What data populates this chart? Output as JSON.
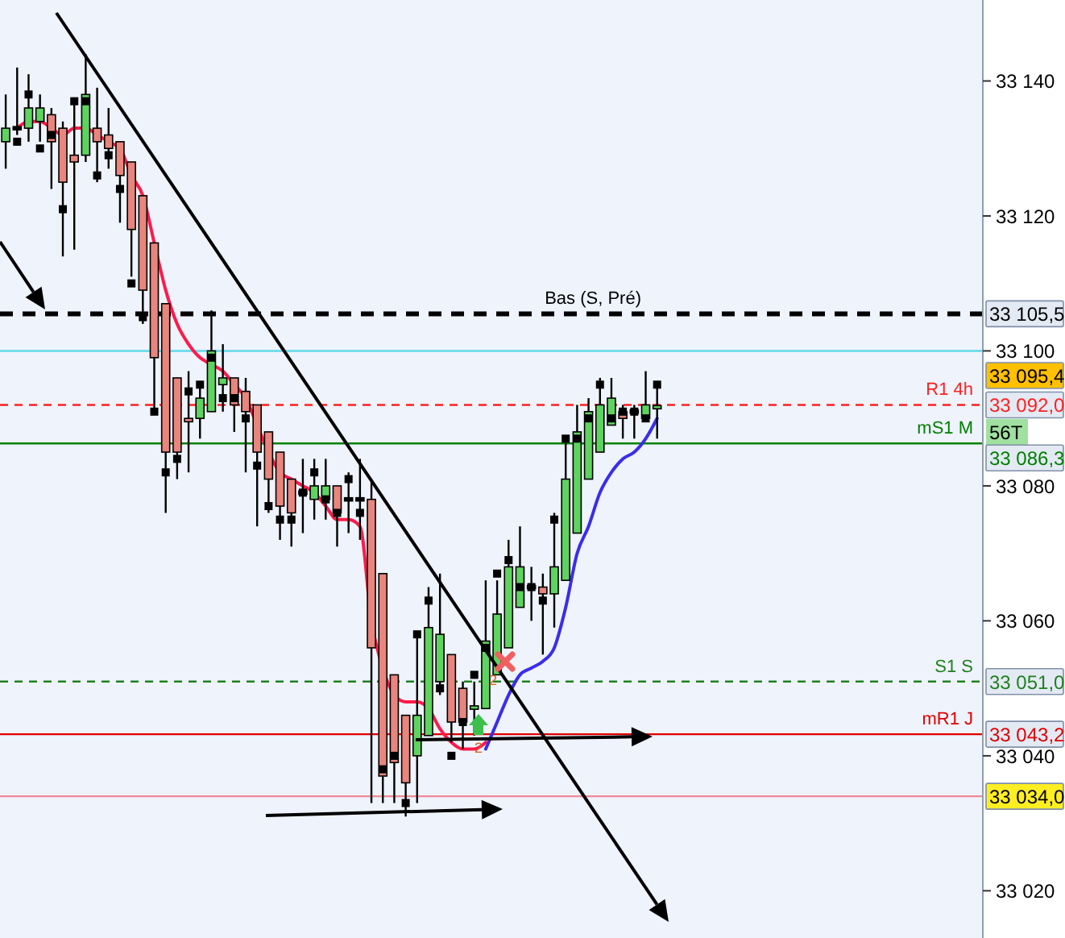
{
  "chart_data": {
    "type": "candlestick",
    "categories": [
      null,
      null,
      null,
      null,
      null,
      null,
      null,
      null,
      null,
      null,
      null,
      null,
      null,
      null,
      null,
      null,
      null,
      null,
      null,
      null,
      null,
      null,
      null,
      null,
      null,
      null,
      null,
      null,
      null,
      null,
      null,
      null,
      null,
      null,
      null,
      null,
      null,
      null,
      null,
      null,
      null,
      null,
      null,
      null,
      null,
      null,
      null,
      null,
      null,
      null,
      null,
      null,
      null,
      null,
      null,
      null,
      null,
      null,
      null,
      null,
      null,
      null,
      null,
      null,
      null,
      null,
      null,
      null,
      null,
      null,
      null,
      null,
      null,
      null,
      null,
      null,
      null,
      null,
      null,
      null,
      null,
      null,
      null,
      null,
      null,
      null
    ],
    "ohlc": [
      [
        33131,
        33138,
        33127,
        33133
      ],
      [
        33133,
        33142,
        33132,
        33133
      ],
      [
        33133,
        33141,
        33131,
        33136
      ],
      [
        33134,
        33138,
        33131,
        33136
      ],
      [
        33135,
        33136,
        33124,
        33131
      ],
      [
        33133,
        33134,
        33114,
        33125
      ],
      [
        33129,
        33137,
        33115,
        33128
      ],
      [
        33129,
        33144,
        33128,
        33138
      ],
      [
        33133,
        33139,
        33125,
        33131
      ],
      [
        33132,
        33136,
        33127,
        33130
      ],
      [
        33131,
        33131,
        33119,
        33126
      ],
      [
        33128,
        33128,
        33111,
        33118
      ],
      [
        33123,
        33123,
        33104,
        33109
      ],
      [
        33116,
        33116,
        33091,
        33099
      ],
      [
        33107,
        33107,
        33076,
        33085
      ],
      [
        33096,
        33096,
        33081,
        33085
      ],
      [
        33090,
        33097,
        33082,
        33089.5
      ],
      [
        33090,
        33095,
        33087,
        33093
      ],
      [
        33091,
        33106,
        33091,
        33100
      ],
      [
        33095,
        33101,
        33091,
        33096
      ],
      [
        33096,
        33096,
        33088,
        33092
      ],
      [
        33094,
        33096,
        33082,
        33091
      ],
      [
        33092,
        33092,
        33074,
        33085
      ],
      [
        33088,
        33088,
        33076,
        33081
      ],
      [
        33085,
        33085,
        33072,
        33077
      ],
      [
        33081,
        33081,
        33071,
        33076
      ],
      [
        33079,
        33084,
        33073,
        33079
      ],
      [
        33078,
        33084,
        33075,
        33080
      ],
      [
        33078,
        33084,
        33075,
        33080
      ],
      [
        33080,
        33080,
        33071,
        33076
      ],
      [
        33078,
        33082,
        33073,
        33078
      ],
      [
        33078,
        33084,
        33072,
        33078
      ],
      [
        33078,
        33081,
        33033,
        33056
      ],
      [
        33067,
        33067,
        33033,
        33037
      ],
      [
        33052,
        33052,
        33033,
        33039
      ],
      [
        33046,
        33046,
        33031,
        33036
      ],
      [
        33040,
        33058,
        33033,
        33046
      ],
      [
        33043,
        33065,
        33043,
        33059
      ],
      [
        33051,
        33067,
        33049,
        33058
      ],
      [
        33055,
        33055,
        33042,
        33045
      ],
      [
        33050,
        33051,
        33041,
        33045
      ],
      [
        33046.9,
        33051,
        33043,
        33047.4
      ],
      [
        33047,
        33066,
        33047,
        33057
      ],
      [
        33052,
        33066,
        33052,
        33061
      ],
      [
        33056,
        33072,
        33056,
        33068
      ],
      [
        33062,
        33074,
        33062,
        33068
      ],
      [
        33065,
        33068,
        33060,
        33065
      ],
      [
        33065,
        33067,
        33055,
        33064
      ],
      [
        33064,
        33076,
        33059,
        33068
      ],
      [
        33066,
        33087,
        33066,
        33081
      ],
      [
        33073,
        33092,
        33073,
        33088
      ],
      [
        33081,
        33093,
        33081,
        33091
      ],
      [
        33085,
        33096,
        33085,
        33092
      ],
      [
        33089,
        33096,
        33089,
        33093
      ],
      [
        33091,
        33092,
        33087,
        33090
      ],
      [
        33091,
        33092,
        33087,
        33091
      ],
      [
        33090,
        33097,
        33090,
        33092
      ],
      [
        33091.6,
        33095.5,
        33087,
        33091.9
      ],
      null,
      null,
      null,
      null,
      null,
      null,
      null,
      null,
      null,
      null,
      null,
      null,
      null,
      null,
      null,
      null,
      null,
      null,
      null,
      null,
      null,
      null,
      null,
      null,
      null,
      null,
      null,
      null
    ],
    "series": [
      {
        "type": "scatter",
        "marker": "square",
        "color": "#000000",
        "values": [
          null,
          33131,
          33138,
          33130,
          33132,
          33121,
          33137,
          33137,
          33126,
          33129,
          33124,
          33110,
          33105,
          33091,
          33082,
          33084,
          33094,
          33095,
          33099,
          33093,
          33093,
          33090,
          33083,
          33077,
          33075,
          33075,
          33079,
          33082,
          33078,
          33076,
          33081,
          33076,
          null,
          33038,
          33040,
          33033,
          33058,
          33063,
          33050,
          33040,
          33045,
          33052,
          33056,
          33067,
          33069,
          33065,
          33065,
          33063,
          33075,
          33087,
          33087,
          33090,
          33095,
          33090,
          33091,
          33091,
          33090,
          33095,
          null,
          null,
          null,
          null,
          null,
          null,
          null,
          null,
          null,
          null,
          null,
          null,
          null,
          null,
          null,
          null,
          null,
          null,
          null,
          null,
          null,
          null,
          null,
          null,
          null,
          null,
          null,
          null
        ]
      },
      {
        "type": "line",
        "color": "#ff1a4a",
        "values": [
          null,
          33133,
          33134,
          33134,
          33133,
          33132,
          33133,
          33133,
          33132,
          33131,
          33130,
          33126,
          33123,
          33116,
          33109,
          33104,
          33101,
          33099,
          33098,
          33097,
          33095,
          33093,
          33089,
          33085,
          33082,
          33081,
          33080,
          33079,
          33077,
          33075,
          33075,
          33074,
          33060,
          33053,
          33049,
          33048,
          33048,
          33047,
          33044,
          33042,
          33041,
          33041,
          33042,
          null,
          null,
          null,
          null,
          null,
          null,
          null,
          null,
          null,
          null,
          null,
          null,
          null,
          null,
          null,
          null,
          null,
          null,
          null,
          null,
          null,
          null,
          null,
          null,
          null,
          null,
          null,
          null,
          null,
          null,
          null,
          null,
          null,
          null,
          null,
          null,
          null,
          null,
          null,
          null,
          null,
          null,
          null
        ]
      },
      {
        "type": "line",
        "color": "#3a2ee8",
        "values": [
          null,
          null,
          null,
          null,
          null,
          null,
          null,
          null,
          null,
          null,
          null,
          null,
          null,
          null,
          null,
          null,
          null,
          null,
          null,
          null,
          null,
          null,
          null,
          null,
          null,
          null,
          null,
          null,
          null,
          null,
          null,
          null,
          null,
          null,
          null,
          null,
          null,
          null,
          null,
          null,
          null,
          null,
          33041,
          33045,
          33049,
          33052,
          33053,
          33054,
          33056,
          33062,
          33070,
          33074,
          33079,
          33082,
          33084,
          33085,
          33087,
          33090,
          null,
          null,
          null,
          null,
          null,
          null,
          null,
          null,
          null,
          null,
          null,
          null,
          null,
          null,
          null,
          null,
          null,
          null,
          null,
          null,
          null,
          null,
          null,
          null,
          null,
          null,
          null,
          null
        ]
      }
    ],
    "ylim": [
      33013,
      33152
    ],
    "yticks": [
      {
        "value": 33020,
        "label": "33 020"
      },
      {
        "value": 33040,
        "label": "33 040"
      },
      {
        "value": 33060,
        "label": "33 060"
      },
      {
        "value": 33080,
        "label": "33 080"
      },
      {
        "value": 33100,
        "label": "33 100"
      },
      {
        "value": 33120,
        "label": "33 120"
      },
      {
        "value": 33140,
        "label": "33 140"
      }
    ],
    "ref_lines": [
      {
        "axis": "y",
        "value": 33105.5,
        "label": "Bas (S, Pré)",
        "color": "#000000",
        "line_style": "dashed"
      },
      {
        "axis": "y",
        "value": 33100,
        "label": null,
        "color": "#60d8e8",
        "line_style": "solid"
      },
      {
        "axis": "y",
        "value": 33092.0,
        "label": "R1 4h",
        "color": "#ff2020",
        "line_style": "dashed"
      },
      {
        "axis": "y",
        "value": 33086.3,
        "label": "mS1 M",
        "color": "#008000",
        "line_style": "solid"
      },
      {
        "axis": "y",
        "value": 33051.0,
        "label": "S1 S",
        "color": "#208020",
        "line_style": "dashed"
      },
      {
        "axis": "y",
        "value": 33043.2,
        "label": "mR1 J",
        "color": "#e00000",
        "line_style": "solid"
      },
      {
        "axis": "y",
        "value": 33034.0,
        "label": null,
        "color": "#f08898",
        "line_style": "solid"
      }
    ],
    "annotations": [
      "33 105,5",
      "33 092,0",
      "33 086,3",
      "33 051,0",
      "33 043,2",
      "33 034,0",
      "33 095,4",
      "56T",
      "2",
      "2"
    ]
  }
}
